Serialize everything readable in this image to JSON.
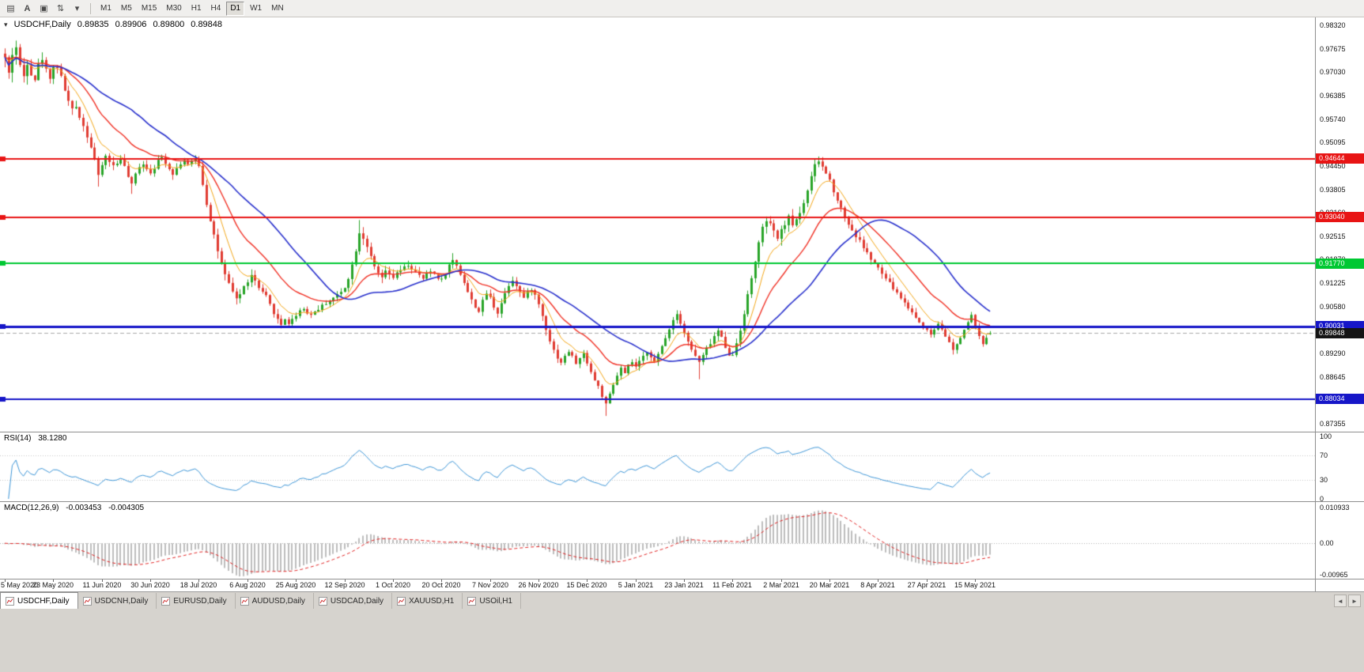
{
  "toolbar": {
    "tools": [
      {
        "name": "market-watch-icon",
        "glyph": "▤"
      },
      {
        "name": "cursor-tool",
        "glyph": "A"
      },
      {
        "name": "chart-window-icon",
        "glyph": "▣"
      },
      {
        "name": "scale-tool-icon",
        "glyph": "⇅"
      },
      {
        "name": "toolbar-dropdown-caret",
        "glyph": "▾"
      }
    ],
    "timeframes": [
      "M1",
      "M5",
      "M15",
      "M30",
      "H1",
      "H4",
      "D1",
      "W1",
      "MN"
    ],
    "active_timeframe": "D1"
  },
  "chart": {
    "title": {
      "expander": "▾",
      "symbol": "USDCHF,Daily",
      "open": "0.89835",
      "high": "0.89906",
      "low": "0.89800",
      "close": "0.89848"
    },
    "colors": {
      "up": "#28a428",
      "down": "#e03c32",
      "bg": "#ffffff",
      "last_line": "#a8a8a8"
    },
    "price_axis": {
      "max": 0.9832,
      "min": 0.87355,
      "ticks": [
        "0.98320",
        "0.97675",
        "0.97030",
        "0.96385",
        "0.95740",
        "0.95095",
        "0.94450",
        "0.93805",
        "0.93160",
        "0.92515",
        "0.91870",
        "0.91225",
        "0.90580",
        "0.89935",
        "0.89290",
        "0.88645",
        "0.88000",
        "0.87355"
      ]
    },
    "hlines": [
      {
        "value": 0.94644,
        "label": "0.94644",
        "color": "#e81414",
        "width": 2
      },
      {
        "value": 0.9304,
        "label": "0.93040",
        "color": "#e81414",
        "width": 2
      },
      {
        "value": 0.9177,
        "label": "0.91770",
        "color": "#00c832",
        "width": 2
      },
      {
        "value": 0.90031,
        "label": "0.90031",
        "color": "#1616c8",
        "width": 3
      },
      {
        "value": 0.88034,
        "label": "0.88034",
        "color": "#1616c8",
        "width": 2
      }
    ],
    "last_price": {
      "value": 0.89848,
      "label": "0.89848",
      "tag_bg": "#141414"
    },
    "mas": [
      {
        "name": "ma-fast-orange",
        "type": "ema",
        "period": 8,
        "color": "#f2a516",
        "width": 1
      },
      {
        "name": "ma-mid-red",
        "type": "ema",
        "period": 20,
        "color": "#f03024",
        "width": 1.4
      },
      {
        "name": "ma-slow-blue",
        "type": "sma",
        "period": 35,
        "color": "#2830cc",
        "width": 1.6
      }
    ],
    "dates": [
      {
        "d": 0,
        "label": "5 May 2020"
      },
      {
        "d": 13,
        "label": "23 May 2020"
      },
      {
        "d": 26,
        "label": "11 Jun 2020"
      },
      {
        "d": 39,
        "label": "30 Jun 2020"
      },
      {
        "d": 52,
        "label": "18 Jul 2020"
      },
      {
        "d": 65,
        "label": "6 Aug 2020"
      },
      {
        "d": 78,
        "label": "25 Aug 2020"
      },
      {
        "d": 91,
        "label": "12 Sep 2020"
      },
      {
        "d": 104,
        "label": "1 Oct 2020"
      },
      {
        "d": 117,
        "label": "20 Oct 2020"
      },
      {
        "d": 130,
        "label": "7 Nov 2020"
      },
      {
        "d": 143,
        "label": "26 Nov 2020"
      },
      {
        "d": 156,
        "label": "15 Dec 2020"
      },
      {
        "d": 169,
        "label": "5 Jan 2021"
      },
      {
        "d": 182,
        "label": "23 Jan 2021"
      },
      {
        "d": 195,
        "label": "11 Feb 2021"
      },
      {
        "d": 208,
        "label": "2 Mar 2021"
      },
      {
        "d": 221,
        "label": "20 Mar 2021"
      },
      {
        "d": 234,
        "label": "8 Apr 2021"
      },
      {
        "d": 247,
        "label": "27 Apr 2021"
      },
      {
        "d": 260,
        "label": "15 May 2021"
      }
    ],
    "series": {
      "seed": 42,
      "closes": [
        0.9742,
        0.9698,
        0.9755,
        0.9772,
        0.9718,
        0.9692,
        0.9732,
        0.9702,
        0.9685,
        0.9722,
        0.9742,
        0.9708,
        0.9692,
        0.9715,
        0.972,
        0.9688,
        0.9655,
        0.9622,
        0.9598,
        0.9608,
        0.9582,
        0.9555,
        0.9528,
        0.9498,
        0.9462,
        0.9415,
        0.9448,
        0.9472,
        0.9458,
        0.9445,
        0.9452,
        0.9468,
        0.9442,
        0.9415,
        0.9392,
        0.9422,
        0.9445,
        0.9452,
        0.9438,
        0.9428,
        0.9442,
        0.9458,
        0.9468,
        0.9455,
        0.9438,
        0.9425,
        0.9438,
        0.9452,
        0.9462,
        0.9448,
        0.9455,
        0.9465,
        0.9448,
        0.9395,
        0.9342,
        0.9298,
        0.9255,
        0.9212,
        0.9172,
        0.9142,
        0.9118,
        0.9098,
        0.9082,
        0.9092,
        0.9112,
        0.9128,
        0.9142,
        0.9128,
        0.9108,
        0.9095,
        0.9085,
        0.9062,
        0.9042,
        0.9022,
        0.9008,
        0.9025,
        0.9012,
        0.9022,
        0.9035,
        0.9048,
        0.9052,
        0.9042,
        0.9035,
        0.9045,
        0.9052,
        0.906,
        0.9068,
        0.9075,
        0.9082,
        0.909,
        0.9098,
        0.9112,
        0.9138,
        0.9172,
        0.9215,
        0.9262,
        0.9248,
        0.9225,
        0.9192,
        0.9165,
        0.9148,
        0.9138,
        0.9152,
        0.9145,
        0.9138,
        0.9148,
        0.9158,
        0.9165,
        0.9172,
        0.9162,
        0.9152,
        0.9142,
        0.9135,
        0.9145,
        0.9155,
        0.9148,
        0.9138,
        0.9132,
        0.9152,
        0.9172,
        0.9185,
        0.9172,
        0.9148,
        0.9125,
        0.9098,
        0.9075,
        0.9058,
        0.9045,
        0.9072,
        0.9095,
        0.9082,
        0.9058,
        0.9042,
        0.9068,
        0.9095,
        0.9118,
        0.9132,
        0.9118,
        0.9098,
        0.9082,
        0.9095,
        0.9108,
        0.9088,
        0.9065,
        0.9032,
        0.8998,
        0.8965,
        0.8938,
        0.8918,
        0.8905,
        0.892,
        0.8935,
        0.892,
        0.8902,
        0.8915,
        0.8928,
        0.8905,
        0.8878,
        0.8855,
        0.8838,
        0.8812,
        0.8788,
        0.8815,
        0.8842,
        0.8868,
        0.8888,
        0.8872,
        0.8895,
        0.8905,
        0.8892,
        0.8905,
        0.892,
        0.8935,
        0.8922,
        0.8905,
        0.8925,
        0.8948,
        0.8972,
        0.8998,
        0.9022,
        0.9038,
        0.9015,
        0.8988,
        0.8962,
        0.8938,
        0.8922,
        0.8905,
        0.8922,
        0.8942,
        0.8958,
        0.8975,
        0.8992,
        0.8972,
        0.8948,
        0.8928,
        0.8922,
        0.8958,
        0.8995,
        0.9042,
        0.9088,
        0.9135,
        0.9185,
        0.9232,
        0.9272,
        0.9295,
        0.9282,
        0.9262,
        0.9248,
        0.9265,
        0.9288,
        0.9302,
        0.9285,
        0.9298,
        0.9318,
        0.9345,
        0.9378,
        0.9412,
        0.9445,
        0.9458,
        0.9442,
        0.9425,
        0.9405,
        0.9378,
        0.9352,
        0.9328,
        0.9305,
        0.9285,
        0.9268,
        0.9252,
        0.9238,
        0.9222,
        0.9205,
        0.9188,
        0.9175,
        0.9162,
        0.9148,
        0.9135,
        0.9122,
        0.9108,
        0.9095,
        0.9082,
        0.9068,
        0.9055,
        0.9042,
        0.9028,
        0.9015,
        0.9002,
        0.8992,
        0.8982,
        0.8995,
        0.9012,
        0.8998,
        0.8978,
        0.8958,
        0.8938,
        0.8952,
        0.8972,
        0.8995,
        0.9015,
        0.9032,
        0.9005,
        0.8975,
        0.8952,
        0.8972,
        0.8985
      ],
      "vol": [
        [
          0,
          0.0036
        ],
        [
          12,
          0.0026
        ],
        [
          22,
          0.0018
        ],
        [
          50,
          0.0015
        ],
        [
          56,
          0.0026
        ],
        [
          63,
          0.0018
        ],
        [
          90,
          0.0014
        ],
        [
          96,
          0.002
        ],
        [
          118,
          0.0014
        ],
        [
          144,
          0.0018
        ],
        [
          152,
          0.0014
        ],
        [
          170,
          0.0013
        ],
        [
          197,
          0.0018
        ],
        [
          205,
          0.0022
        ],
        [
          220,
          0.002
        ],
        [
          240,
          0.0014
        ],
        [
          264,
          0.0011
        ]
      ],
      "wicks": [
        [
          3,
          "h",
          0.979
        ],
        [
          25,
          "l",
          0.9388
        ],
        [
          34,
          "l",
          0.9368
        ],
        [
          74,
          "l",
          0.8998
        ],
        [
          95,
          "h",
          0.9296
        ],
        [
          120,
          "h",
          0.9205
        ],
        [
          161,
          "l",
          0.8757
        ],
        [
          180,
          "h",
          0.9046
        ],
        [
          186,
          "l",
          0.8858
        ],
        [
          217,
          "h",
          0.9465
        ],
        [
          218,
          "h",
          0.9471
        ],
        [
          254,
          "l",
          0.8926
        ]
      ],
      "last_candle": {
        "o": 0.89835,
        "h": 0.89906,
        "l": 0.898,
        "c": 0.89848
      }
    }
  },
  "rsi": {
    "label": "RSI(14)",
    "value": "38.1280",
    "period": 14,
    "color": "#3d95d6",
    "levels": [
      70,
      30
    ],
    "ticks": [
      {
        "v": 100,
        "label": "100"
      },
      {
        "v": 70,
        "label": "70"
      },
      {
        "v": 30,
        "label": "30"
      },
      {
        "v": 0,
        "label": "0"
      }
    ]
  },
  "macd": {
    "label": "MACD(12,26,9)",
    "main_value": "-0.003453",
    "signal_value": "-0.004305",
    "fast": 12,
    "slow": 26,
    "signal_period": 9,
    "hist_color": "#bdbdbd",
    "signal_color": "#e02020",
    "range": {
      "max": 0.010933,
      "min": -0.00965
    },
    "ticks": [
      {
        "v": 0.010933,
        "label": "0.010933"
      },
      {
        "v": 0,
        "label": "0.00"
      },
      {
        "v": -0.00965,
        "label": "-0.00965"
      }
    ]
  },
  "tabs": {
    "active": 0,
    "items": [
      "USDCHF,Daily",
      "USDCNH,Daily",
      "EURUSD,Daily",
      "AUDUSD,Daily",
      "USDCAD,Daily",
      "XAUUSD,H1",
      "USOil,H1"
    ],
    "scroll_left": "◄",
    "scroll_right": "►"
  }
}
